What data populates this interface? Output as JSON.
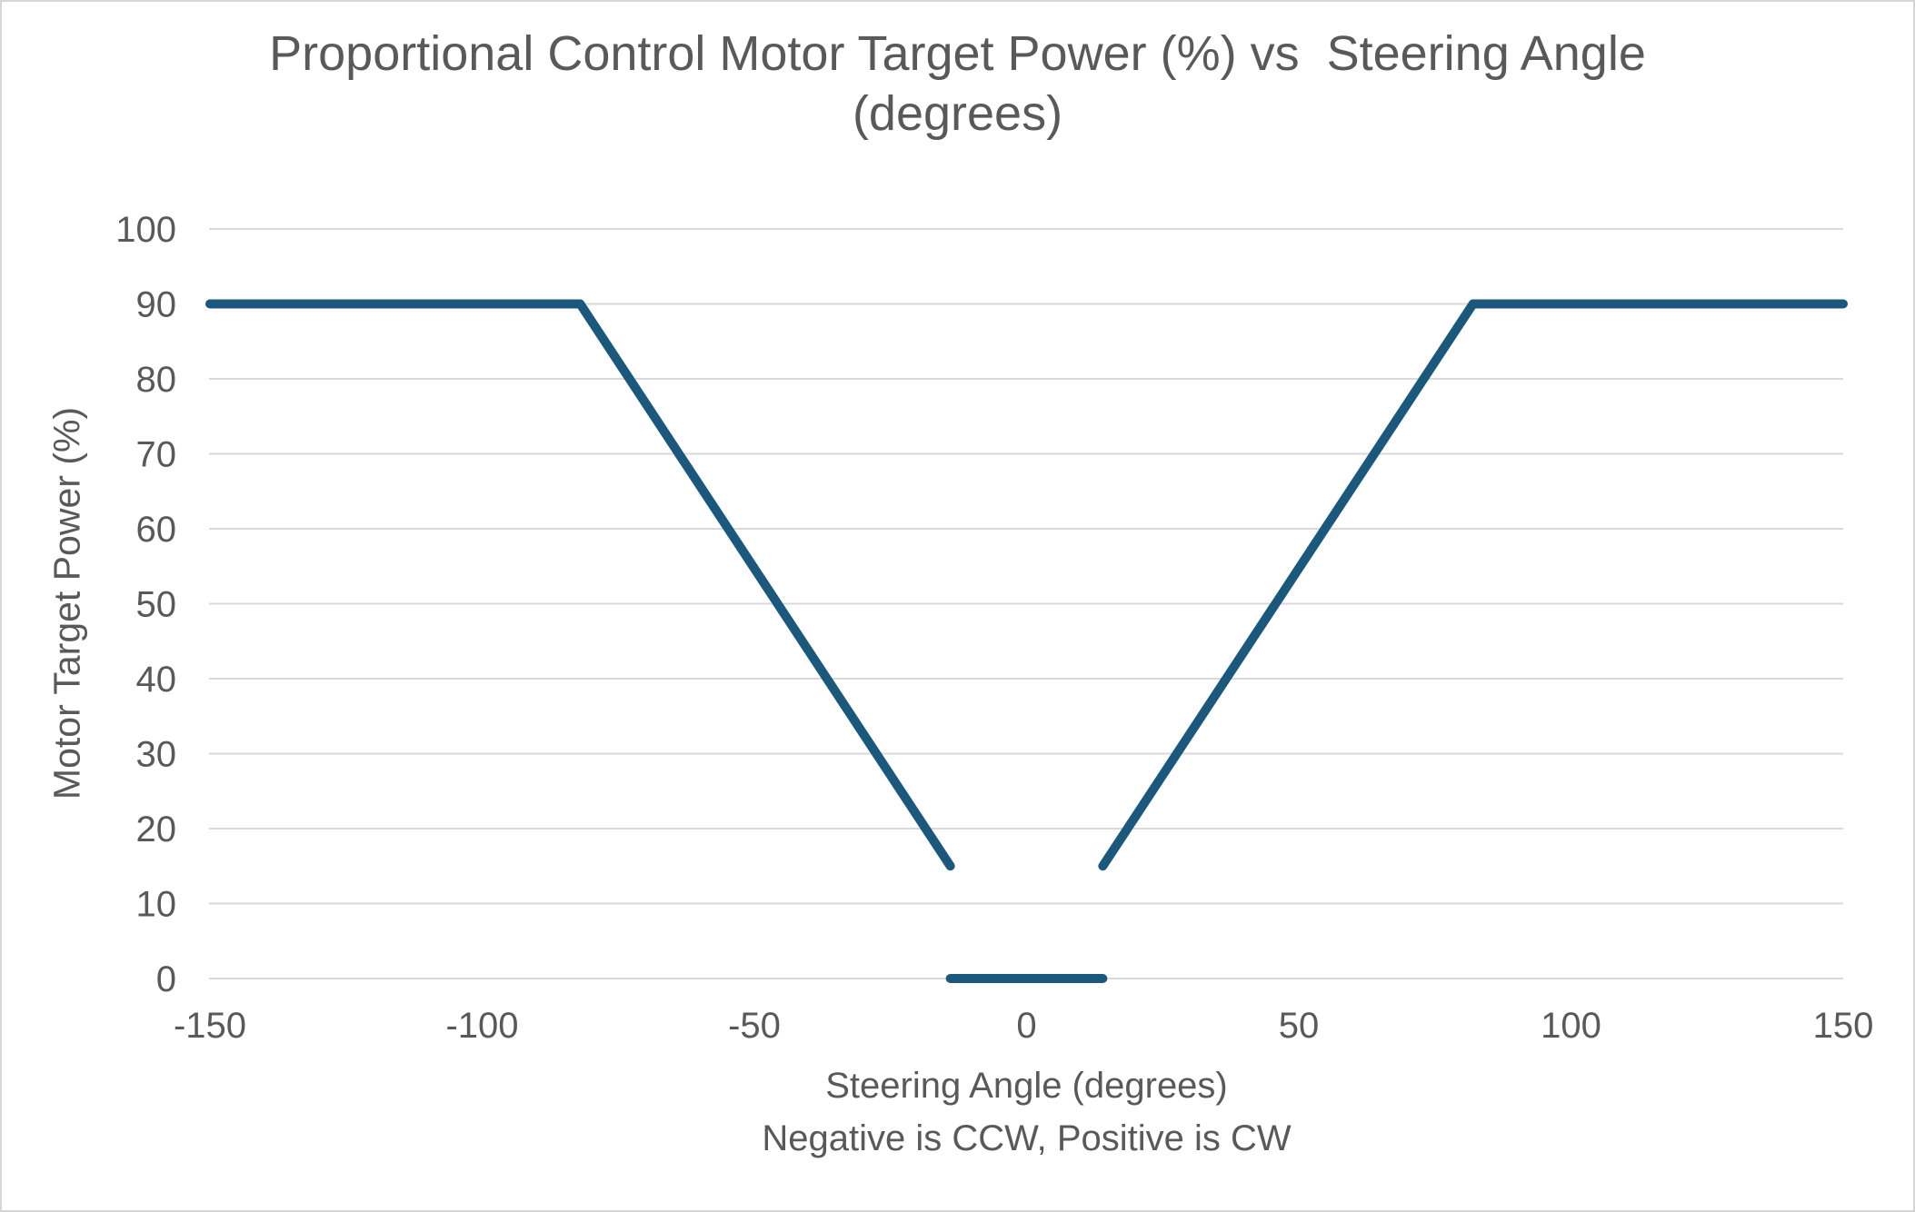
{
  "window": {
    "background": "#ffffff",
    "border_color": "#d6d6d6"
  },
  "chart_data": {
    "type": "line",
    "title_line1": "Proportional Control Motor Target Power (%) vs  Steering Angle",
    "title_line2": "(degrees)",
    "ylabel": "Motor Target Power (%)",
    "xlabel_line1": "Steering Angle (degrees)",
    "xlabel_line2": "Negative is CCW, Positive is CW",
    "xlim": [
      -150,
      150
    ],
    "ylim": [
      0,
      100
    ],
    "xticks": [
      -150,
      -100,
      -50,
      0,
      50,
      100,
      150
    ],
    "yticks": [
      0,
      10,
      20,
      30,
      40,
      50,
      60,
      70,
      80,
      90,
      100
    ],
    "grid": "horizontal-only",
    "legend": "none",
    "colors": {
      "line": "#1B587C",
      "grid": "#D9D9D9",
      "text": "#595959"
    },
    "series": [
      {
        "name": "Motor Target Power",
        "color": "#1B587C",
        "stroke_width": 10,
        "segments_note": "three disconnected segments (gaps between ramp ends and the zero deadband)",
        "segments": [
          [
            [
              -150,
              90
            ],
            [
              -82,
              90
            ],
            [
              -14,
              15
            ]
          ],
          [
            [
              -14,
              0
            ],
            [
              14,
              0
            ]
          ],
          [
            [
              14,
              15
            ],
            [
              82,
              90
            ],
            [
              150,
              90
            ]
          ]
        ]
      }
    ]
  }
}
